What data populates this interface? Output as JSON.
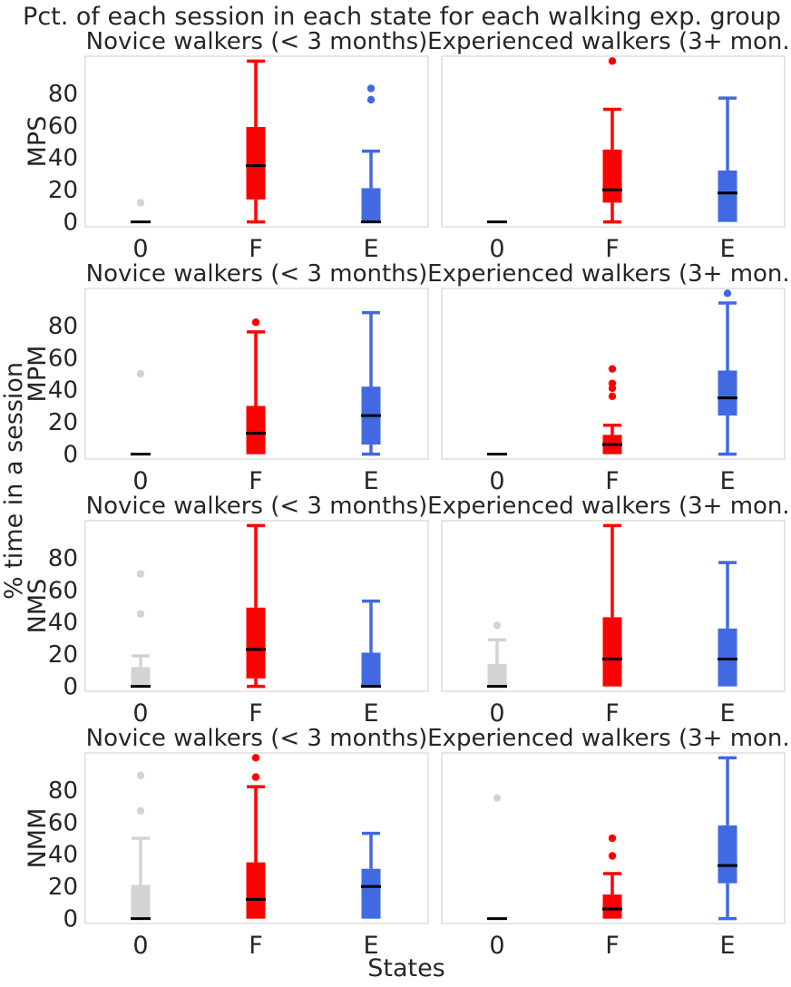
{
  "figure": {
    "title": "Pct. of each session in each state for each walking exp. group",
    "ylabel": "% time in a session",
    "xlabel": "States"
  },
  "chart_data": {
    "type": "box",
    "categories": [
      "0",
      "F",
      "E"
    ],
    "ylim": [
      -3,
      103
    ],
    "yticks": [
      0,
      20,
      40,
      60,
      80
    ],
    "grid": false,
    "colors": {
      "0": "#d3d3d3",
      "F": "#ff0000",
      "E": "#4169e1",
      "median": "#000000"
    },
    "rows": [
      {
        "ylabel": "MPS",
        "panels": [
          {
            "title": "Novice walkers (< 3 months)",
            "boxes": [
              {
                "min": 0,
                "q1": 0,
                "median": 0,
                "q3": 0,
                "max": 0,
                "outliers": [
                  12
                ]
              },
              {
                "min": 0,
                "q1": 14,
                "median": 35,
                "q3": 59,
                "max": 100,
                "outliers": []
              },
              {
                "min": 0,
                "q1": 0,
                "median": 0,
                "q3": 21,
                "max": 44,
                "outliers": [
                  76,
                  83
                ]
              }
            ]
          },
          {
            "title": "Experienced walkers (3+ mon.)",
            "boxes": [
              {
                "min": 0,
                "q1": 0,
                "median": 0,
                "q3": 0,
                "max": 0,
                "outliers": []
              },
              {
                "min": 0,
                "q1": 12,
                "median": 20,
                "q3": 45,
                "max": 70,
                "outliers": [
                  100
                ]
              },
              {
                "min": 0,
                "q1": 0,
                "median": 18,
                "q3": 32,
                "max": 77,
                "outliers": []
              }
            ]
          }
        ]
      },
      {
        "ylabel": "MPM",
        "panels": [
          {
            "title": "Novice walkers (< 3 months)",
            "boxes": [
              {
                "min": 0,
                "q1": 0,
                "median": 0,
                "q3": 0,
                "max": 0,
                "outliers": [
                  50
                ]
              },
              {
                "min": 0,
                "q1": 0,
                "median": 13,
                "q3": 30,
                "max": 76,
                "outliers": [
                  82
                ]
              },
              {
                "min": 0,
                "q1": 6,
                "median": 24,
                "q3": 42,
                "max": 88,
                "outliers": []
              }
            ]
          },
          {
            "title": "Experienced walkers (3+ mon.)",
            "boxes": [
              {
                "min": 0,
                "q1": 0,
                "median": 0,
                "q3": 0,
                "max": 0,
                "outliers": []
              },
              {
                "min": 0,
                "q1": 0,
                "median": 6,
                "q3": 12,
                "max": 18,
                "outliers": [
                  36,
                  41,
                  44,
                  53
                ]
              },
              {
                "min": 0,
                "q1": 24,
                "median": 35,
                "q3": 52,
                "max": 94,
                "outliers": [
                  100
                ]
              }
            ]
          }
        ]
      },
      {
        "ylabel": "NMS",
        "panels": [
          {
            "title": "Novice walkers (< 3 months)",
            "boxes": [
              {
                "min": 0,
                "q1": 0,
                "median": 0,
                "q3": 12,
                "max": 19,
                "outliers": [
                  45,
                  70
                ]
              },
              {
                "min": 0,
                "q1": 5,
                "median": 23,
                "q3": 49,
                "max": 100,
                "outliers": []
              },
              {
                "min": 0,
                "q1": 0,
                "median": 0,
                "q3": 21,
                "max": 53,
                "outliers": []
              }
            ]
          },
          {
            "title": "Experienced walkers (3+ mon.)",
            "boxes": [
              {
                "min": 0,
                "q1": 0,
                "median": 0,
                "q3": 14,
                "max": 29,
                "outliers": [
                  38
                ]
              },
              {
                "min": 0,
                "q1": 0,
                "median": 17,
                "q3": 43,
                "max": 100,
                "outliers": []
              },
              {
                "min": 0,
                "q1": 0,
                "median": 17,
                "q3": 36,
                "max": 77,
                "outliers": []
              }
            ]
          }
        ]
      },
      {
        "ylabel": "NMM",
        "panels": [
          {
            "title": "Novice walkers (< 3 months)",
            "boxes": [
              {
                "min": 0,
                "q1": 0,
                "median": 0,
                "q3": 21,
                "max": 50,
                "outliers": [
                  67,
                  89
                ]
              },
              {
                "min": 0,
                "q1": 0,
                "median": 12,
                "q3": 35,
                "max": 82,
                "outliers": [
                  88,
                  100
                ]
              },
              {
                "min": 0,
                "q1": 0,
                "median": 20,
                "q3": 31,
                "max": 53,
                "outliers": []
              }
            ]
          },
          {
            "title": "Experienced walkers (3+ mon.)",
            "boxes": [
              {
                "min": 0,
                "q1": 0,
                "median": 0,
                "q3": 0,
                "max": 0,
                "outliers": [
                  75
                ]
              },
              {
                "min": 0,
                "q1": 0,
                "median": 6,
                "q3": 15,
                "max": 28,
                "outliers": [
                  39,
                  50
                ]
              },
              {
                "min": 0,
                "q1": 22,
                "median": 33,
                "q3": 58,
                "max": 100,
                "outliers": []
              }
            ]
          }
        ]
      }
    ]
  }
}
